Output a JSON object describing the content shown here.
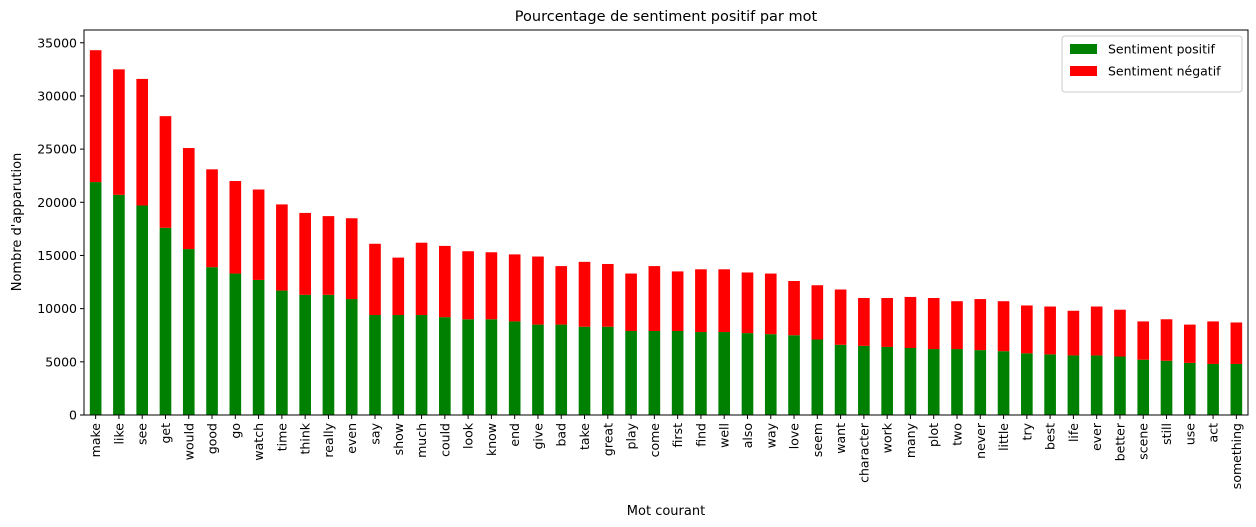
{
  "chart_data": {
    "type": "bar",
    "stacked": true,
    "title": "Pourcentage de sentiment positif par mot",
    "xlabel": "Mot courant",
    "ylabel": "Nombre d'apparution",
    "ylim": [
      0,
      36200
    ],
    "yticks": [
      0,
      5000,
      10000,
      15000,
      20000,
      25000,
      30000,
      35000
    ],
    "legend": "top-right",
    "grid": false,
    "categories": [
      "make",
      "like",
      "see",
      "get",
      "would",
      "good",
      "go",
      "watch",
      "time",
      "think",
      "really",
      "even",
      "say",
      "show",
      "much",
      "could",
      "look",
      "know",
      "end",
      "give",
      "bad",
      "take",
      "great",
      "play",
      "come",
      "first",
      "find",
      "well",
      "also",
      "way",
      "love",
      "seem",
      "want",
      "character",
      "work",
      "many",
      "plot",
      "two",
      "never",
      "little",
      "try",
      "best",
      "life",
      "ever",
      "better",
      "scene",
      "still",
      "use",
      "act",
      "something"
    ],
    "series": [
      {
        "name": "Sentiment positif",
        "color": "#008000",
        "values": [
          21900,
          20700,
          19700,
          17600,
          15600,
          13900,
          13300,
          12700,
          11700,
          11300,
          11300,
          10900,
          9400,
          9400,
          9400,
          9200,
          9000,
          9000,
          8800,
          8500,
          8500,
          8300,
          8300,
          7900,
          7900,
          7900,
          7800,
          7800,
          7700,
          7600,
          7500,
          7100,
          6600,
          6500,
          6400,
          6300,
          6200,
          6200,
          6100,
          6000,
          5800,
          5700,
          5600,
          5600,
          5500,
          5200,
          5100,
          4900,
          4800,
          4800
        ]
      },
      {
        "name": "Sentiment négatif",
        "color": "#ff0000",
        "values": [
          12400,
          11800,
          11900,
          10500,
          9500,
          9200,
          8700,
          8500,
          8100,
          7700,
          7400,
          7600,
          6700,
          5400,
          6800,
          6700,
          6400,
          6300,
          6300,
          6400,
          5500,
          6100,
          5900,
          5400,
          6100,
          5600,
          5900,
          5900,
          5700,
          5700,
          5100,
          5100,
          5200,
          4500,
          4600,
          4800,
          4800,
          4500,
          4800,
          4700,
          4500,
          4500,
          4200,
          4600,
          4400,
          3600,
          3900,
          3600,
          4000,
          3900
        ]
      }
    ]
  }
}
